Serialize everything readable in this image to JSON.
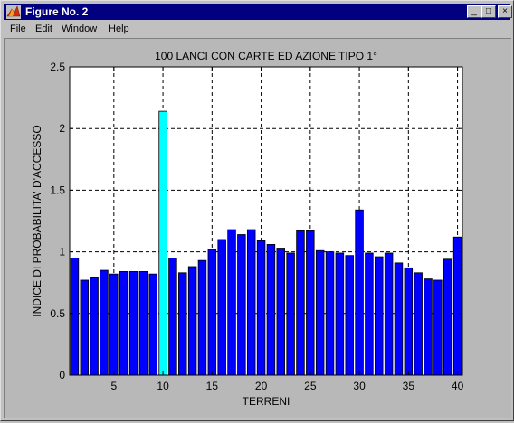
{
  "window": {
    "title": "Figure No. 2",
    "controls": {
      "minimize": "_",
      "maximize": "□",
      "close": "×"
    }
  },
  "menu": {
    "items": [
      {
        "label": "File",
        "underline": "F"
      },
      {
        "label": "Edit",
        "underline": "E"
      },
      {
        "label": "Window",
        "underline": "W"
      },
      {
        "label": "Help",
        "underline": "H"
      }
    ]
  },
  "icons": {
    "app": "matlab-logo-icon"
  },
  "colors": {
    "bar": "#0000ff",
    "highlight": "#00ffff",
    "titlebar": "#000080"
  },
  "chart_data": {
    "type": "bar",
    "title": "100 LANCI  CON  CARTE ED AZIONE TIPO 1°",
    "xlabel": "TERRENI",
    "ylabel": "INDICE DI PROBABILITA' D'ACCESSO",
    "xlim": [
      0.5,
      40.5
    ],
    "ylim": [
      0,
      2.5
    ],
    "xticks": [
      5,
      10,
      15,
      20,
      25,
      30,
      35,
      40
    ],
    "yticks": [
      0,
      0.5,
      1,
      1.5,
      2,
      2.5
    ],
    "ytick_labels": [
      "0",
      "0.5",
      "1",
      "1.5",
      "2",
      "2.5"
    ],
    "grid": true,
    "highlight_index": 9,
    "x": [
      1,
      2,
      3,
      4,
      5,
      6,
      7,
      8,
      9,
      10,
      11,
      12,
      13,
      14,
      15,
      16,
      17,
      18,
      19,
      20,
      21,
      22,
      23,
      24,
      25,
      26,
      27,
      28,
      29,
      30,
      31,
      32,
      33,
      34,
      35,
      36,
      37,
      38,
      39,
      40
    ],
    "values": [
      0.95,
      0.77,
      0.79,
      0.85,
      0.82,
      0.84,
      0.84,
      0.84,
      0.82,
      2.14,
      0.95,
      0.83,
      0.88,
      0.93,
      1.02,
      1.1,
      1.18,
      1.14,
      1.18,
      1.09,
      1.06,
      1.03,
      0.99,
      1.17,
      1.17,
      1.01,
      1.0,
      0.99,
      0.97,
      1.34,
      0.99,
      0.96,
      0.99,
      0.91,
      0.87,
      0.83,
      0.78,
      0.77,
      0.94,
      1.12
    ]
  }
}
